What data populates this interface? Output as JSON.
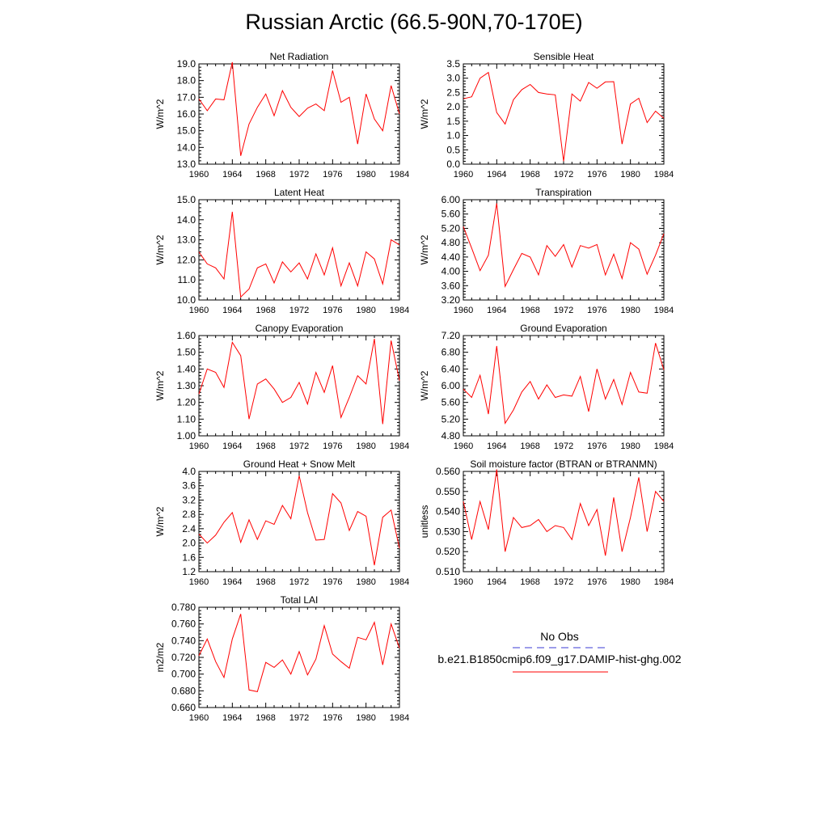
{
  "title": "Russian Arctic (66.5-90N,70-170E)",
  "legend": {
    "obs_label": "No Obs",
    "model_label": "b.e21.B1850cmip6.f09_g17.DAMIP-hist-ghg.002",
    "obs_color": "#3b3bd6",
    "model_color": "#ff0000"
  },
  "chart_data": [
    {
      "type": "line",
      "title": "Net Radiation",
      "ylabel": "W/m^2",
      "xlim": [
        1960,
        1984
      ],
      "ylim": [
        13.0,
        19.0
      ],
      "yticks": [
        "13.0",
        "14.0",
        "15.0",
        "16.0",
        "17.0",
        "18.0",
        "19.0"
      ],
      "xticks": [
        "1960",
        "1964",
        "1968",
        "1972",
        "1976",
        "1980",
        "1984"
      ],
      "series": [
        {
          "name": "b.e21.B1850cmip6.f09_g17.DAMIP-hist-ghg.002",
          "color": "#ff0000",
          "x": [
            1960,
            1961,
            1962,
            1963,
            1964,
            1965,
            1966,
            1967,
            1968,
            1969,
            1970,
            1971,
            1972,
            1973,
            1974,
            1975,
            1976,
            1977,
            1978,
            1979,
            1980,
            1981,
            1982,
            1983,
            1984
          ],
          "values": [
            16.9,
            16.2,
            16.9,
            16.85,
            19.1,
            13.5,
            15.4,
            16.4,
            17.2,
            15.9,
            17.4,
            16.4,
            15.85,
            16.35,
            16.6,
            16.2,
            18.6,
            16.7,
            17.0,
            14.2,
            17.2,
            15.7,
            15.0,
            17.7,
            16.0
          ]
        }
      ]
    },
    {
      "type": "line",
      "title": "Sensible Heat",
      "ylabel": "W/m^2",
      "xlim": [
        1960,
        1984
      ],
      "ylim": [
        0.0,
        3.5
      ],
      "yticks": [
        "0.0",
        "0.5",
        "1.0",
        "1.5",
        "2.0",
        "2.5",
        "3.0",
        "3.5"
      ],
      "xticks": [
        "1960",
        "1964",
        "1968",
        "1972",
        "1976",
        "1980",
        "1984"
      ],
      "series": [
        {
          "name": "b.e21.B1850cmip6.f09_g17.DAMIP-hist-ghg.002",
          "color": "#ff0000",
          "x": [
            1960,
            1961,
            1962,
            1963,
            1964,
            1965,
            1966,
            1967,
            1968,
            1969,
            1970,
            1971,
            1972,
            1973,
            1974,
            1975,
            1976,
            1977,
            1978,
            1979,
            1980,
            1981,
            1982,
            1983,
            1984
          ],
          "values": [
            2.28,
            2.35,
            3.0,
            3.2,
            1.8,
            1.4,
            2.25,
            2.6,
            2.78,
            2.5,
            2.45,
            2.42,
            0.1,
            2.45,
            2.2,
            2.85,
            2.65,
            2.87,
            2.88,
            0.7,
            2.1,
            2.3,
            1.45,
            1.85,
            1.6
          ]
        }
      ]
    },
    {
      "type": "line",
      "title": "Latent Heat",
      "ylabel": "W/m^2",
      "xlim": [
        1960,
        1984
      ],
      "ylim": [
        10.0,
        15.0
      ],
      "yticks": [
        "10.0",
        "11.0",
        "12.0",
        "13.0",
        "14.0",
        "15.0"
      ],
      "xticks": [
        "1960",
        "1964",
        "1968",
        "1972",
        "1976",
        "1980",
        "1984"
      ],
      "series": [
        {
          "name": "b.e21.B1850cmip6.f09_g17.DAMIP-hist-ghg.002",
          "color": "#ff0000",
          "x": [
            1960,
            1961,
            1962,
            1963,
            1964,
            1965,
            1966,
            1967,
            1968,
            1969,
            1970,
            1971,
            1972,
            1973,
            1974,
            1975,
            1976,
            1977,
            1978,
            1979,
            1980,
            1981,
            1982,
            1983,
            1984
          ],
          "values": [
            12.4,
            11.8,
            11.6,
            11.05,
            14.4,
            10.15,
            10.55,
            11.6,
            11.8,
            10.85,
            11.9,
            11.4,
            11.85,
            11.05,
            12.3,
            11.25,
            12.6,
            10.7,
            11.85,
            10.7,
            12.4,
            12.05,
            10.8,
            13.0,
            12.75
          ]
        }
      ]
    },
    {
      "type": "line",
      "title": "Transpiration",
      "ylabel": "W/m^2",
      "xlim": [
        1960,
        1984
      ],
      "ylim": [
        3.2,
        6.0
      ],
      "yticks": [
        "3.20",
        "3.60",
        "4.00",
        "4.40",
        "4.80",
        "5.20",
        "5.60",
        "6.00"
      ],
      "xticks": [
        "1960",
        "1964",
        "1968",
        "1972",
        "1976",
        "1980",
        "1984"
      ],
      "series": [
        {
          "name": "b.e21.B1850cmip6.f09_g17.DAMIP-hist-ghg.002",
          "color": "#ff0000",
          "x": [
            1960,
            1961,
            1962,
            1963,
            1964,
            1965,
            1966,
            1967,
            1968,
            1969,
            1970,
            1971,
            1972,
            1973,
            1974,
            1975,
            1976,
            1977,
            1978,
            1979,
            1980,
            1981,
            1982,
            1983,
            1984
          ],
          "values": [
            5.25,
            4.65,
            4.02,
            4.45,
            5.9,
            3.58,
            4.05,
            4.5,
            4.4,
            3.9,
            4.72,
            4.42,
            4.75,
            4.12,
            4.72,
            4.65,
            4.75,
            3.9,
            4.48,
            3.8,
            4.8,
            4.62,
            3.92,
            4.45,
            5.05
          ]
        }
      ]
    },
    {
      "type": "line",
      "title": "Canopy Evaporation",
      "ylabel": "W/m^2",
      "xlim": [
        1960,
        1984
      ],
      "ylim": [
        1.0,
        1.6
      ],
      "yticks": [
        "1.00",
        "1.10",
        "1.20",
        "1.30",
        "1.40",
        "1.50",
        "1.60"
      ],
      "xticks": [
        "1960",
        "1964",
        "1968",
        "1972",
        "1976",
        "1980",
        "1984"
      ],
      "series": [
        {
          "name": "b.e21.B1850cmip6.f09_g17.DAMIP-hist-ghg.002",
          "color": "#ff0000",
          "x": [
            1960,
            1961,
            1962,
            1963,
            1964,
            1965,
            1966,
            1967,
            1968,
            1969,
            1970,
            1971,
            1972,
            1973,
            1974,
            1975,
            1976,
            1977,
            1978,
            1979,
            1980,
            1981,
            1982,
            1983,
            1984
          ],
          "values": [
            1.25,
            1.4,
            1.38,
            1.29,
            1.56,
            1.48,
            1.1,
            1.31,
            1.34,
            1.28,
            1.2,
            1.23,
            1.32,
            1.19,
            1.38,
            1.26,
            1.42,
            1.11,
            1.23,
            1.36,
            1.31,
            1.58,
            1.07,
            1.57,
            1.33
          ]
        }
      ]
    },
    {
      "type": "line",
      "title": "Ground Evaporation",
      "ylabel": "W/m^2",
      "xlim": [
        1960,
        1984
      ],
      "ylim": [
        4.8,
        7.2
      ],
      "yticks": [
        "4.80",
        "5.20",
        "5.60",
        "6.00",
        "6.40",
        "6.80",
        "7.20"
      ],
      "xticks": [
        "1960",
        "1964",
        "1968",
        "1972",
        "1976",
        "1980",
        "1984"
      ],
      "series": [
        {
          "name": "b.e21.B1850cmip6.f09_g17.DAMIP-hist-ghg.002",
          "color": "#ff0000",
          "x": [
            1960,
            1961,
            1962,
            1963,
            1964,
            1965,
            1966,
            1967,
            1968,
            1969,
            1970,
            1971,
            1972,
            1973,
            1974,
            1975,
            1976,
            1977,
            1978,
            1979,
            1980,
            1981,
            1982,
            1983,
            1984
          ],
          "values": [
            5.92,
            5.72,
            6.25,
            5.32,
            6.95,
            5.1,
            5.42,
            5.85,
            6.1,
            5.68,
            6.02,
            5.72,
            5.78,
            5.75,
            6.22,
            5.38,
            6.4,
            5.68,
            6.15,
            5.55,
            6.32,
            5.85,
            5.82,
            7.02,
            6.38
          ]
        }
      ]
    },
    {
      "type": "line",
      "title": "Ground Heat + Snow Melt",
      "ylabel": "W/m^2",
      "xlim": [
        1960,
        1984
      ],
      "ylim": [
        1.2,
        4.0
      ],
      "yticks": [
        "1.2",
        "1.6",
        "2.0",
        "2.4",
        "2.8",
        "3.2",
        "3.6",
        "4.0"
      ],
      "xticks": [
        "1960",
        "1964",
        "1968",
        "1972",
        "1976",
        "1980",
        "1984"
      ],
      "series": [
        {
          "name": "b.e21.B1850cmip6.f09_g17.DAMIP-hist-ghg.002",
          "color": "#ff0000",
          "x": [
            1960,
            1961,
            1962,
            1963,
            1964,
            1965,
            1966,
            1967,
            1968,
            1969,
            1970,
            1971,
            1972,
            1973,
            1974,
            1975,
            1976,
            1977,
            1978,
            1979,
            1980,
            1981,
            1982,
            1983,
            1984
          ],
          "values": [
            2.25,
            2.0,
            2.22,
            2.58,
            2.85,
            2.02,
            2.65,
            2.1,
            2.62,
            2.52,
            3.05,
            2.68,
            3.88,
            2.85,
            2.08,
            2.1,
            3.38,
            3.12,
            2.35,
            2.88,
            2.75,
            1.38,
            2.72,
            2.92,
            1.85
          ]
        }
      ]
    },
    {
      "type": "line",
      "title": "Soil moisture factor (BTRAN or BTRANMN)",
      "ylabel": "unitless",
      "xlim": [
        1960,
        1984
      ],
      "ylim": [
        0.51,
        0.56
      ],
      "yticks": [
        "0.510",
        "0.520",
        "0.530",
        "0.540",
        "0.550",
        "0.560"
      ],
      "xticks": [
        "1960",
        "1964",
        "1968",
        "1972",
        "1976",
        "1980",
        "1984"
      ],
      "series": [
        {
          "name": "b.e21.B1850cmip6.f09_g17.DAMIP-hist-ghg.002",
          "color": "#ff0000",
          "x": [
            1960,
            1961,
            1962,
            1963,
            1964,
            1965,
            1966,
            1967,
            1968,
            1969,
            1970,
            1971,
            1972,
            1973,
            1974,
            1975,
            1976,
            1977,
            1978,
            1979,
            1980,
            1981,
            1982,
            1983,
            1984
          ],
          "values": [
            0.545,
            0.526,
            0.545,
            0.531,
            0.561,
            0.52,
            0.537,
            0.532,
            0.533,
            0.536,
            0.53,
            0.533,
            0.532,
            0.526,
            0.544,
            0.533,
            0.541,
            0.518,
            0.547,
            0.52,
            0.537,
            0.557,
            0.53,
            0.55,
            0.545
          ]
        }
      ]
    },
    {
      "type": "line",
      "title": "Total LAI",
      "ylabel": "m2/m2",
      "xlim": [
        1960,
        1984
      ],
      "ylim": [
        0.66,
        0.78
      ],
      "yticks": [
        "0.660",
        "0.680",
        "0.700",
        "0.720",
        "0.740",
        "0.760",
        "0.780"
      ],
      "xticks": [
        "1960",
        "1964",
        "1968",
        "1972",
        "1976",
        "1980",
        "1984"
      ],
      "series": [
        {
          "name": "b.e21.B1850cmip6.f09_g17.DAMIP-hist-ghg.002",
          "color": "#ff0000",
          "x": [
            1960,
            1961,
            1962,
            1963,
            1964,
            1965,
            1966,
            1967,
            1968,
            1969,
            1970,
            1971,
            1972,
            1973,
            1974,
            1975,
            1976,
            1977,
            1978,
            1979,
            1980,
            1981,
            1982,
            1983,
            1984
          ],
          "values": [
            0.722,
            0.742,
            0.715,
            0.696,
            0.742,
            0.772,
            0.681,
            0.679,
            0.714,
            0.708,
            0.717,
            0.7,
            0.727,
            0.699,
            0.718,
            0.758,
            0.724,
            0.715,
            0.707,
            0.744,
            0.741,
            0.762,
            0.711,
            0.76,
            0.731
          ]
        }
      ]
    }
  ]
}
